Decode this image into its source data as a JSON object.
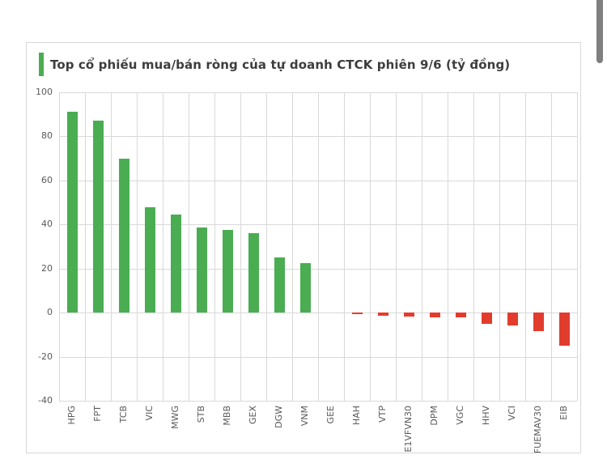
{
  "page": {
    "background": "#ffffff",
    "scrollbar_color": "#7f7f7f"
  },
  "card": {
    "background": "#ffffff",
    "border_color": "#d8d8d8"
  },
  "header": {
    "title": "Top cổ phiếu mua/bán ròng của tự doanh CTCK phiên 9/6 (tỷ đồng)",
    "accent_color": "#4aad52"
  },
  "chart_data": {
    "type": "bar",
    "title": "Top cổ phiếu mua/bán ròng của tự doanh CTCK phiên 9/6 (tỷ đồng)",
    "unit": "tỷ đồng",
    "categories": [
      "HPG",
      "FPT",
      "TCB",
      "VIC",
      "MWG",
      "STB",
      "MBB",
      "GEX",
      "DGW",
      "VNM",
      "GEE",
      "HAH",
      "VTP",
      "E1VFVN30",
      "DPM",
      "VGC",
      "HHV",
      "VCI",
      "FUEMAV30",
      "EIB"
    ],
    "values": [
      91,
      87,
      70,
      48,
      44.5,
      38.5,
      37.5,
      36,
      25,
      22.5,
      0,
      -0.8,
      -1.5,
      -1.8,
      -2,
      -2.2,
      -5,
      -6,
      -8.5,
      -15
    ],
    "positive_color": "#4aad52",
    "negative_color": "#e23c2d",
    "ylim": [
      -40,
      100
    ],
    "yticks": [
      100,
      80,
      60,
      40,
      20,
      0,
      -20,
      -40
    ],
    "grid": true,
    "gridline_color": "#d9d9d9",
    "axis_label_color": "#595959",
    "legend": "none",
    "x_label_rotation": -90
  }
}
